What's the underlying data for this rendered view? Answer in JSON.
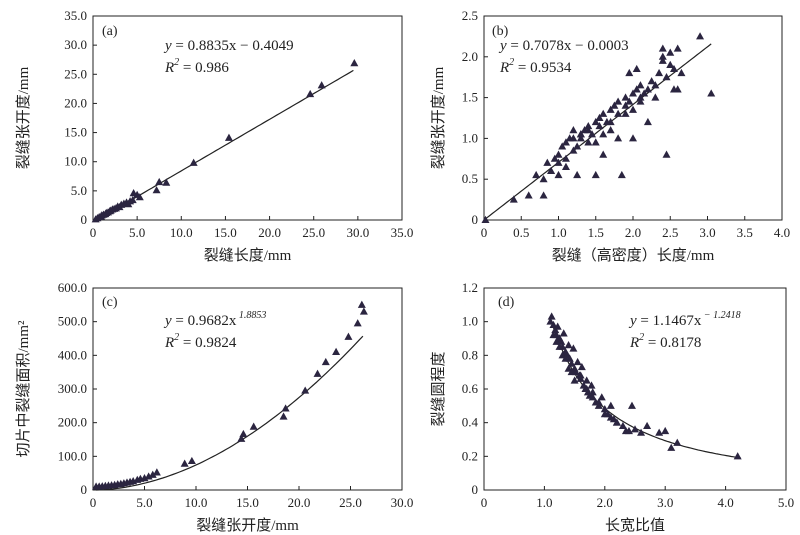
{
  "chart_data": [
    {
      "type": "scatter",
      "panel_label": "(a)",
      "xlabel": "裂缝长度/mm",
      "ylabel": "裂缝张开度/mm",
      "xlim": [
        0,
        35
      ],
      "ylim": [
        0,
        35
      ],
      "xticks": [
        "0",
        "5.0",
        "10.0",
        "15.0",
        "20.0",
        "25.0",
        "30.0",
        "35.0"
      ],
      "yticks": [
        "0",
        "5.0",
        "10.0",
        "15.0",
        "20.0",
        "25.0",
        "30.0",
        "35.0"
      ],
      "xtick_values": [
        0,
        5,
        10,
        15,
        20,
        25,
        30,
        35
      ],
      "ytick_values": [
        0,
        5,
        10,
        15,
        20,
        25,
        30,
        35
      ],
      "fit": {
        "kind": "linear",
        "a": 0.8835,
        "b": -0.4049,
        "x_range": [
          0.5,
          29.5
        ]
      },
      "equation": {
        "lhs": "y",
        "rhs": " = 0.8835x − 0.4049",
        "r2_label": "R",
        "r2_value": " = 0.986"
      },
      "x": [
        0.3,
        0.5,
        0.7,
        0.9,
        1.0,
        1.2,
        1.4,
        1.5,
        1.7,
        1.9,
        2.0,
        2.2,
        2.4,
        2.6,
        2.8,
        3.0,
        3.2,
        3.5,
        3.8,
        4.0,
        4.2,
        4.5,
        4.6,
        5.0,
        5.3,
        7.2,
        7.5,
        8.3,
        11.4,
        15.4,
        24.6,
        25.9,
        29.6
      ],
      "y": [
        0.1,
        0.3,
        0.5,
        0.6,
        0.8,
        0.9,
        1.0,
        1.2,
        1.3,
        1.5,
        1.6,
        1.8,
        1.9,
        2.0,
        2.3,
        2.2,
        2.6,
        2.8,
        3.0,
        2.7,
        3.2,
        3.4,
        4.6,
        4.3,
        3.9,
        5.1,
        6.5,
        6.4,
        9.8,
        14.1,
        21.6,
        23.1,
        26.9
      ]
    },
    {
      "type": "scatter",
      "panel_label": "(b)",
      "xlabel": "裂缝（高密度）长度/mm",
      "ylabel": "裂缝张开度/mm",
      "xlim": [
        0,
        4
      ],
      "ylim": [
        0,
        2.5
      ],
      "xticks": [
        "0",
        "0.5",
        "1.0",
        "1.5",
        "2.0",
        "2.5",
        "3.0",
        "3.5",
        "4.0"
      ],
      "yticks": [
        "0",
        "0.5",
        "1.0",
        "1.5",
        "2.0",
        "2.5"
      ],
      "xtick_values": [
        0,
        0.5,
        1,
        1.5,
        2,
        2.5,
        3,
        3.5,
        4
      ],
      "ytick_values": [
        0,
        0.5,
        1,
        1.5,
        2,
        2.5
      ],
      "fit": {
        "kind": "linear",
        "a": 0.7078,
        "b": -0.0003,
        "x_range": [
          0,
          3.05
        ]
      },
      "equation": {
        "lhs": "y",
        "rhs": " = 0.7078x − 0.0003",
        "r2_label": "R",
        "r2_value": " = 0.9534"
      },
      "x": [
        0.02,
        0.4,
        0.6,
        0.7,
        0.8,
        0.85,
        0.9,
        0.95,
        1.0,
        1.0,
        1.05,
        1.1,
        1.1,
        1.15,
        1.2,
        1.2,
        1.25,
        1.3,
        1.3,
        1.35,
        1.4,
        1.4,
        1.45,
        1.5,
        1.5,
        1.55,
        1.6,
        1.6,
        1.65,
        1.7,
        1.7,
        1.75,
        1.8,
        1.8,
        1.85,
        1.9,
        1.9,
        1.95,
        2.0,
        2.0,
        2.05,
        2.1,
        2.1,
        2.15,
        2.2,
        2.25,
        2.3,
        2.35,
        2.4,
        2.4,
        2.45,
        2.5,
        2.5,
        2.55,
        2.6,
        2.65,
        2.9,
        3.05,
        0.9,
        1.0,
        1.1,
        1.3,
        1.6,
        1.8,
        2.0,
        2.2,
        2.45,
        2.6,
        1.2,
        1.4,
        1.5,
        1.7,
        1.9,
        2.1,
        2.3,
        0.8,
        1.25,
        1.55,
        2.4,
        2.55,
        2.05,
        1.95
      ],
      "y": [
        0.0,
        0.25,
        0.3,
        0.55,
        0.5,
        0.7,
        0.6,
        0.75,
        0.8,
        0.55,
        0.9,
        0.95,
        0.65,
        1.0,
        0.85,
        1.1,
        0.9,
        1.0,
        1.05,
        1.1,
        0.95,
        1.15,
        1.05,
        1.2,
        0.55,
        1.25,
        1.05,
        1.3,
        1.2,
        1.35,
        1.1,
        1.4,
        1.3,
        1.45,
        0.55,
        1.4,
        1.5,
        1.45,
        1.55,
        1.35,
        1.6,
        1.5,
        1.65,
        1.55,
        1.6,
        1.7,
        1.65,
        1.8,
        2.0,
        2.1,
        1.75,
        1.9,
        2.05,
        1.85,
        2.1,
        1.8,
        2.25,
        1.55,
        0.6,
        0.7,
        0.75,
        1.05,
        0.8,
        1.0,
        1.0,
        1.2,
        0.8,
        1.6,
        1.0,
        1.1,
        0.95,
        1.2,
        1.3,
        1.45,
        1.5,
        0.3,
        0.55,
        1.15,
        1.95,
        1.6,
        1.85,
        1.8
      ]
    },
    {
      "type": "scatter",
      "panel_label": "(c)",
      "xlabel": "裂缝张开度/mm",
      "ylabel": "切片中裂缝面积/mm²",
      "xlim": [
        0,
        30
      ],
      "ylim": [
        0,
        600
      ],
      "xticks": [
        "0",
        "5.0",
        "10.0",
        "15.0",
        "20.0",
        "25.0",
        "30.0"
      ],
      "yticks": [
        "0",
        "100.0",
        "200.0",
        "300.0",
        "400.0",
        "500.0",
        "600.0"
      ],
      "xtick_values": [
        0,
        5,
        10,
        15,
        20,
        25,
        30
      ],
      "ytick_values": [
        0,
        100,
        200,
        300,
        400,
        500,
        600
      ],
      "fit": {
        "kind": "power",
        "a": 0.9682,
        "b": 1.8853,
        "x_range": [
          0.3,
          26.2
        ]
      },
      "equation": {
        "lhs": "y",
        "rhs": " = 0.9682x",
        "exponent": "1.8853",
        "r2_label": "R",
        "r2_value": " = 0.9824"
      },
      "x": [
        0.3,
        0.6,
        0.9,
        1.2,
        1.5,
        1.8,
        2.1,
        2.4,
        2.7,
        3.0,
        3.3,
        3.6,
        3.9,
        4.3,
        4.6,
        5.0,
        5.4,
        5.8,
        6.2,
        8.9,
        9.6,
        14.4,
        14.6,
        15.6,
        18.5,
        18.7,
        20.6,
        21.8,
        22.6,
        23.6,
        24.8,
        25.7,
        26.1,
        26.3
      ],
      "y": [
        10,
        10,
        11,
        12,
        13,
        14,
        15,
        17,
        18,
        20,
        22,
        24,
        26,
        30,
        33,
        35,
        40,
        45,
        52,
        78,
        86,
        152,
        166,
        188,
        218,
        242,
        295,
        345,
        380,
        410,
        455,
        495,
        550,
        530
      ]
    },
    {
      "type": "scatter",
      "panel_label": "(d)",
      "xlabel": "长宽比值",
      "ylabel": "裂缝圆程度",
      "xlim": [
        0,
        5
      ],
      "ylim": [
        0,
        1.2
      ],
      "xticks": [
        "0",
        "1.0",
        "2.0",
        "3.0",
        "4.0",
        "5.0"
      ],
      "yticks": [
        "0",
        "0.2",
        "0.4",
        "0.6",
        "0.8",
        "1.0",
        "1.2"
      ],
      "xtick_values": [
        0,
        1,
        2,
        3,
        4,
        5
      ],
      "ytick_values": [
        0,
        0.2,
        0.4,
        0.6,
        0.8,
        1.0,
        1.2
      ],
      "fit": {
        "kind": "power",
        "a": 1.1467,
        "b": -1.2418,
        "x_range": [
          1.1,
          4.25
        ]
      },
      "equation": {
        "lhs": "y",
        "rhs": " = 1.1467x",
        "exponent": "− 1.2418",
        "r2_label": "R",
        "r2_value": " = 0.8178"
      },
      "x": [
        1.1,
        1.12,
        1.15,
        1.18,
        1.2,
        1.22,
        1.25,
        1.28,
        1.3,
        1.32,
        1.35,
        1.38,
        1.4,
        1.42,
        1.45,
        1.48,
        1.5,
        1.52,
        1.55,
        1.58,
        1.6,
        1.62,
        1.65,
        1.68,
        1.7,
        1.72,
        1.75,
        1.78,
        1.8,
        1.85,
        1.9,
        1.95,
        2.0,
        2.05,
        2.1,
        2.15,
        2.2,
        2.3,
        2.4,
        2.5,
        2.6,
        2.7,
        2.9,
        3.0,
        3.1,
        3.2,
        4.2,
        1.15,
        1.2,
        1.25,
        1.3,
        1.35,
        1.4,
        1.45,
        1.5,
        1.6,
        1.7,
        1.8,
        1.9,
        2.0,
        2.1,
        2.2,
        2.35,
        2.45
      ],
      "y": [
        1.0,
        1.03,
        0.98,
        0.95,
        0.92,
        0.97,
        0.9,
        0.88,
        0.85,
        0.93,
        0.82,
        0.8,
        0.86,
        0.78,
        0.75,
        0.84,
        0.72,
        0.7,
        0.76,
        0.68,
        0.66,
        0.73,
        0.62,
        0.6,
        0.65,
        0.58,
        0.56,
        0.62,
        0.55,
        0.52,
        0.5,
        0.55,
        0.48,
        0.45,
        0.5,
        0.42,
        0.4,
        0.38,
        0.35,
        0.36,
        0.34,
        0.38,
        0.34,
        0.35,
        0.25,
        0.28,
        0.2,
        0.92,
        0.88,
        0.85,
        0.8,
        0.78,
        0.72,
        0.7,
        0.65,
        0.68,
        0.6,
        0.58,
        0.52,
        0.45,
        0.43,
        0.4,
        0.35,
        0.5
      ]
    }
  ]
}
